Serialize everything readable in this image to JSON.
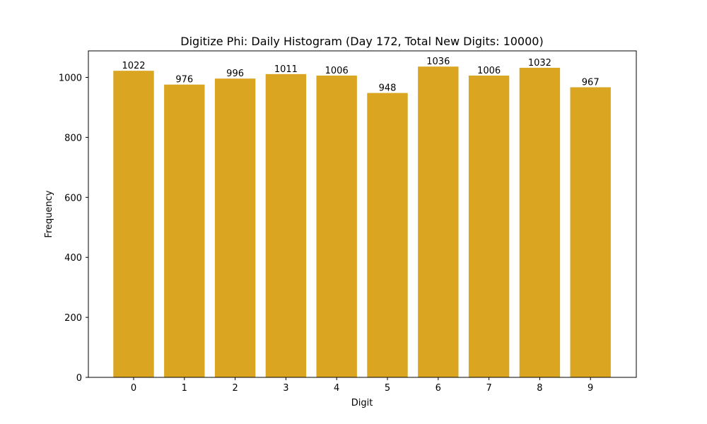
{
  "chart_data": {
    "type": "bar",
    "title": "Digitize Phi: Daily Histogram (Day 172, Total New Digits: 10000)",
    "xlabel": "Digit",
    "ylabel": "Frequency",
    "categories": [
      "0",
      "1",
      "2",
      "3",
      "4",
      "5",
      "6",
      "7",
      "8",
      "9"
    ],
    "values": [
      1022,
      976,
      996,
      1011,
      1006,
      948,
      1036,
      1006,
      1032,
      967
    ],
    "data_labels": [
      "1022",
      "976",
      "996",
      "1011",
      "1006",
      "948",
      "1036",
      "1006",
      "1032",
      "967"
    ],
    "yticks": [
      0,
      200,
      400,
      600,
      800,
      1000
    ],
    "ytick_labels": [
      "0",
      "200",
      "400",
      "600",
      "800",
      "1000"
    ],
    "ylim": [
      0,
      1087.8
    ],
    "grid": false,
    "legend": null,
    "bar_color": "#DAA520"
  }
}
